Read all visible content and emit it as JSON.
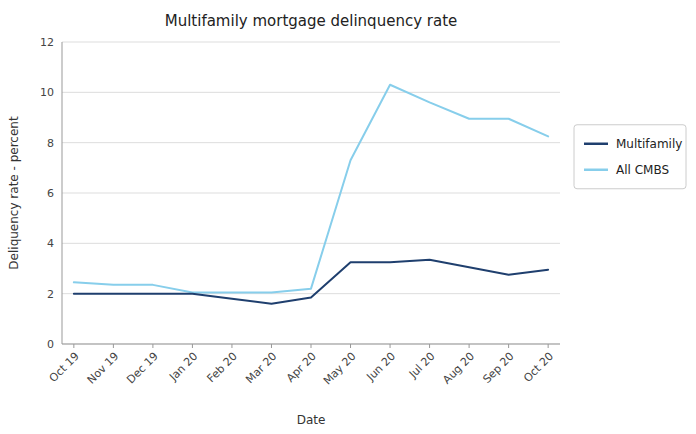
{
  "chart_data": {
    "type": "line",
    "title": "Multifamily mortgage delinquency rate",
    "xlabel": "Date",
    "ylabel": "Deliquency rate - percent",
    "categories": [
      "Oct 19",
      "Nov 19",
      "Dec 19",
      "Jan 20",
      "Feb 20",
      "Mar 20",
      "Apr 20",
      "May 20",
      "Jun 20",
      "Jul 20",
      "Aug 20",
      "Sep 20",
      "Oct 20"
    ],
    "series": [
      {
        "name": "Multifamily",
        "color": "#1F3F6E",
        "values": [
          2.0,
          2.0,
          2.0,
          2.0,
          1.8,
          1.6,
          1.85,
          3.25,
          3.25,
          3.35,
          3.05,
          2.75,
          2.95
        ]
      },
      {
        "name": "All CMBS",
        "color": "#87CEEB",
        "values": [
          2.45,
          2.35,
          2.35,
          2.05,
          2.05,
          2.05,
          2.2,
          7.3,
          10.3,
          9.6,
          8.95,
          8.95,
          8.25
        ]
      }
    ],
    "ylim": [
      0,
      12
    ],
    "yticks": [
      0,
      2,
      4,
      6,
      8,
      10,
      12
    ],
    "grid": true,
    "legend": "right"
  }
}
